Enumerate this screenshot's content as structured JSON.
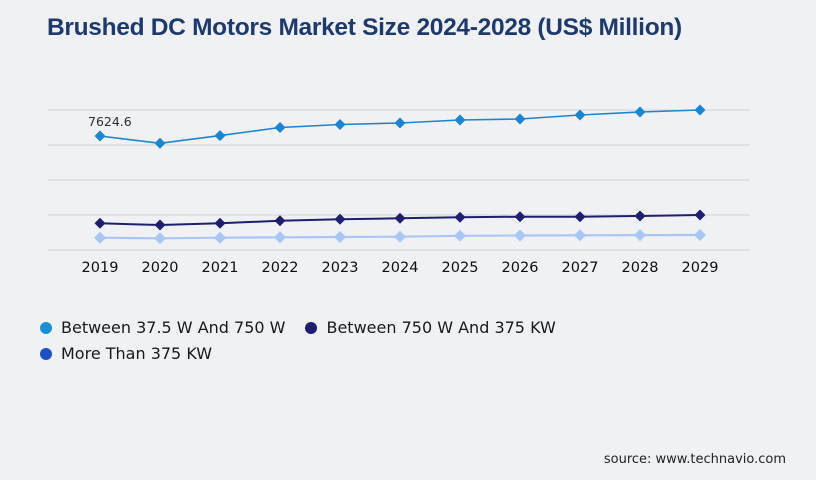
{
  "title": "Brushed DC Motors Market Size 2024-2028 (US$ Million)",
  "source": "source: www.technavio.com",
  "colors": {
    "background": "#f0f1f4",
    "title": "#1e3a6a",
    "gridline": "#d4d4d8",
    "axis_label": "#0f0f0f",
    "data_label": "#2e2e2e"
  },
  "legend": {
    "items": [
      {
        "label": "Between 37.5 W And 750 W",
        "color": "#1a8fd6"
      },
      {
        "label": "Between 750 W And 375 KW",
        "color": "#1f1f70"
      },
      {
        "label": "More Than 375 KW",
        "color": "#1d4ec2"
      }
    ]
  },
  "chart_data": {
    "type": "line",
    "title": "Brushed DC Motors Market Size 2024-2028 (US$ Million)",
    "xlabel": "",
    "ylabel": "US$ Million",
    "x": [
      2019,
      2020,
      2021,
      2022,
      2023,
      2024,
      2025,
      2026,
      2027,
      2028,
      2029
    ],
    "ylim": [
      0,
      9800
    ],
    "grid": "horizontal-only, 5 unlabeled gridlines",
    "legend_position": "bottom-left",
    "marker": "diamond",
    "series": [
      {
        "name": "Between 37.5 W And 750 W",
        "color": "#1b86cf",
        "values": [
          7624.6,
          7138.2,
          7650.3,
          8195.4,
          8396.1,
          8496.5,
          8697.2,
          8764.1,
          9031.5,
          9232.3,
          9366.0
        ]
      },
      {
        "name": "Between 750 W And 375 KW",
        "color": "#1f1f70",
        "values": [
          1786.3,
          1672.5,
          1786.3,
          1960.2,
          2053.8,
          2120.7,
          2187.6,
          2227.8,
          2227.8,
          2274.6,
          2341.5
        ]
      },
      {
        "name": "More Than 375 KW",
        "color": "#a9c7f4",
        "values": [
          822.9,
          782.7,
          822.9,
          849.6,
          869.7,
          889.8,
          949.5,
          969.6,
          985.2,
          995.4,
          1003.5
        ]
      }
    ],
    "data_labels": [
      {
        "series": 0,
        "x": 2019,
        "text": "7624.6"
      }
    ]
  }
}
